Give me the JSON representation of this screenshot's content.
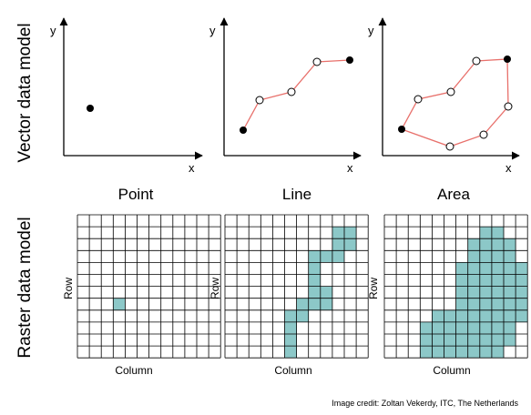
{
  "row_labels": {
    "vector": "Vector data model",
    "raster": "Raster data model"
  },
  "panel_titles": [
    "Point",
    "Line",
    "Area"
  ],
  "axis_letters": {
    "x": "x",
    "y": "y"
  },
  "grid_axis_labels": {
    "row": "Row",
    "column": "Column"
  },
  "credit": "Image credit: Zoltan Vekerdy, ITC, The Netherlands",
  "colors": {
    "line_edge": "#e8706b",
    "raster_fill": "#8cc8c8",
    "grid_line": "#000000",
    "vertex": "#000000"
  },
  "grid_size": {
    "cols": 12,
    "rows": 12
  },
  "raster_cells": {
    "point": [
      [
        7,
        3
      ]
    ],
    "line": [
      [
        1,
        9
      ],
      [
        1,
        10
      ],
      [
        2,
        9
      ],
      [
        2,
        10
      ],
      [
        3,
        7
      ],
      [
        3,
        8
      ],
      [
        3,
        9
      ],
      [
        4,
        7
      ],
      [
        5,
        7
      ],
      [
        6,
        7
      ],
      [
        6,
        8
      ],
      [
        7,
        6
      ],
      [
        7,
        7
      ],
      [
        7,
        8
      ],
      [
        8,
        5
      ],
      [
        8,
        6
      ],
      [
        9,
        5
      ],
      [
        10,
        5
      ],
      [
        11,
        5
      ]
    ],
    "area": [
      [
        1,
        8
      ],
      [
        1,
        9
      ],
      [
        2,
        7
      ],
      [
        2,
        8
      ],
      [
        2,
        9
      ],
      [
        2,
        10
      ],
      [
        3,
        7
      ],
      [
        3,
        8
      ],
      [
        3,
        9
      ],
      [
        3,
        10
      ],
      [
        4,
        6
      ],
      [
        4,
        7
      ],
      [
        4,
        8
      ],
      [
        4,
        9
      ],
      [
        4,
        10
      ],
      [
        4,
        11
      ],
      [
        5,
        6
      ],
      [
        5,
        7
      ],
      [
        5,
        8
      ],
      [
        5,
        9
      ],
      [
        5,
        10
      ],
      [
        5,
        11
      ],
      [
        6,
        6
      ],
      [
        6,
        7
      ],
      [
        6,
        8
      ],
      [
        6,
        9
      ],
      [
        6,
        10
      ],
      [
        6,
        11
      ],
      [
        7,
        6
      ],
      [
        7,
        7
      ],
      [
        7,
        8
      ],
      [
        7,
        9
      ],
      [
        7,
        10
      ],
      [
        7,
        11
      ],
      [
        8,
        4
      ],
      [
        8,
        5
      ],
      [
        8,
        6
      ],
      [
        8,
        7
      ],
      [
        8,
        8
      ],
      [
        8,
        9
      ],
      [
        8,
        10
      ],
      [
        8,
        11
      ],
      [
        9,
        3
      ],
      [
        9,
        4
      ],
      [
        9,
        5
      ],
      [
        9,
        6
      ],
      [
        9,
        7
      ],
      [
        9,
        8
      ],
      [
        9,
        9
      ],
      [
        9,
        10
      ],
      [
        10,
        3
      ],
      [
        10,
        4
      ],
      [
        10,
        5
      ],
      [
        10,
        6
      ],
      [
        10,
        7
      ],
      [
        10,
        8
      ],
      [
        10,
        9
      ],
      [
        10,
        10
      ],
      [
        11,
        3
      ],
      [
        11,
        4
      ],
      [
        11,
        5
      ],
      [
        11,
        6
      ],
      [
        11,
        7
      ],
      [
        11,
        8
      ],
      [
        11,
        9
      ]
    ]
  }
}
